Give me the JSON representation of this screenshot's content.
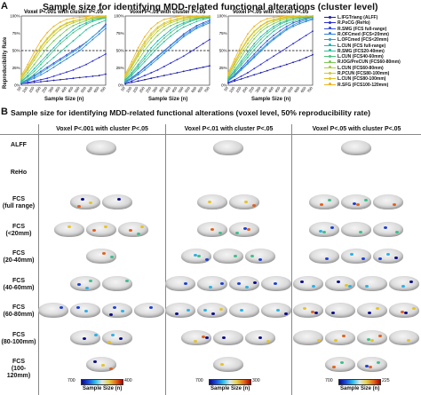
{
  "panelA": {
    "letter": "A",
    "title": "Sample size for identifying MDD-related functional alterations (cluster level)",
    "ylabel": "Reproducibility Rate",
    "xlabel": "Sample Size (n)",
    "subplots": [
      {
        "title": "Voxel P<.001 with cluster P<.05"
      },
      {
        "title": "Voxel P<.01 with cluster P<.05"
      },
      {
        "title": "Voxel P<.05 with cluster P<.05"
      }
    ],
    "yticks": [
      "100%",
      "75%",
      "50%",
      "25%",
      "0%"
    ],
    "xticks": [
      "50",
      "100",
      "150",
      "200",
      "250",
      "300",
      "350",
      "400",
      "450",
      "500",
      "550",
      "600",
      "650",
      "700"
    ],
    "legend": [
      {
        "label": "L.IFGTriang (ALFF)",
        "color": "#1a1aa6"
      },
      {
        "label": "R.PoCG (ReHo)",
        "color": "#2a2ad4"
      },
      {
        "label": "R.SMG (FCS full-range)",
        "color": "#3a4fd8"
      },
      {
        "label": "R.OFCmed (FCS<20mm)",
        "color": "#2f7fd8"
      },
      {
        "label": "L.OFCmed (FCS<20mm)",
        "color": "#2a9fd0"
      },
      {
        "label": "L.CUN (FCS full-range)",
        "color": "#22b6b6"
      },
      {
        "label": "R.SMG (FCS20-40mm)",
        "color": "#2bbf9a"
      },
      {
        "label": "L.CUN (FCS40-60mm)",
        "color": "#49c27a"
      },
      {
        "label": "R.IOG/PreCUN (FCS60-80mm)",
        "color": "#7cc956"
      },
      {
        "label": "L.CUN (FCS60-80mm)",
        "color": "#a9cf3c"
      },
      {
        "label": "R.PCUN (FCS80-100mm)",
        "color": "#cfc92e"
      },
      {
        "label": "L.CUN (FCS80-100mm)",
        "color": "#e2c226"
      },
      {
        "label": "R.SFG (FCS100-120mm)",
        "color": "#f0b41c"
      }
    ]
  },
  "panelB": {
    "letter": "B",
    "title": "Sample size for identifying MDD-related functional alterations (voxel level, 50% reproducibility rate)",
    "columns": [
      {
        "header": "Voxel P<.001 with cluster P<.05",
        "cbar_min": "700",
        "cbar_max": "400",
        "cbar_title": "Sample Size (n)"
      },
      {
        "header": "Voxel P<.01 with cluster P<.05",
        "cbar_min": "700",
        "cbar_max": "300",
        "cbar_title": "Sample Size (n)"
      },
      {
        "header": "Voxel P<.05 with cluster P<.05",
        "cbar_min": "700",
        "cbar_max": "225",
        "cbar_title": "Sample Size (n)"
      }
    ],
    "rows": [
      {
        "label": "ALFF"
      },
      {
        "label": "ReHo"
      },
      {
        "label": "FCS\n(full range)"
      },
      {
        "label": "FCS\n(<20mm)"
      },
      {
        "label": "FCS\n(20-40mm)"
      },
      {
        "label": "FCS\n(40-60mm)"
      },
      {
        "label": "FCS\n(60-80mm)"
      },
      {
        "label": "FCS\n(80-100mm)"
      },
      {
        "label": "FCS\n(100-120mm)"
      }
    ]
  },
  "chart_data": [
    {
      "type": "line",
      "title": "Voxel P<.001 with cluster P<.05",
      "xlabel": "Sample Size (n)",
      "ylabel": "Reproducibility Rate",
      "x": [
        50,
        100,
        150,
        200,
        250,
        300,
        350,
        400,
        450,
        500,
        550,
        600,
        650,
        700
      ],
      "ylim": [
        0,
        100
      ],
      "reference_line": 50,
      "series": [
        {
          "name": "L.IFGTriang (ALFF)",
          "values": [
            2,
            3,
            4,
            5,
            6,
            7,
            8,
            9,
            10,
            11,
            12,
            13,
            14,
            16
          ]
        },
        {
          "name": "R.PoCG (ReHo)",
          "values": [
            2,
            4,
            6,
            8,
            10,
            13,
            16,
            19,
            22,
            26,
            30,
            35,
            40,
            45
          ]
        },
        {
          "name": "R.SMG (FCS full-range)",
          "values": [
            4,
            8,
            14,
            20,
            26,
            32,
            38,
            44,
            50,
            56,
            62,
            70,
            78,
            88
          ]
        },
        {
          "name": "R.OFCmed (FCS<20mm)",
          "values": [
            3,
            6,
            10,
            15,
            20,
            26,
            32,
            38,
            44,
            50,
            58,
            66,
            74,
            82
          ]
        },
        {
          "name": "L.OFCmed (FCS<20mm)",
          "values": [
            3,
            7,
            12,
            18,
            24,
            30,
            36,
            42,
            48,
            54,
            62,
            70,
            78,
            86
          ]
        },
        {
          "name": "L.CUN (FCS full-range)",
          "values": [
            6,
            14,
            24,
            34,
            44,
            54,
            64,
            72,
            80,
            86,
            90,
            94,
            96,
            98
          ]
        },
        {
          "name": "R.SMG (FCS20-40mm)",
          "values": [
            4,
            9,
            16,
            24,
            32,
            40,
            48,
            56,
            64,
            72,
            80,
            86,
            90,
            94
          ]
        },
        {
          "name": "L.CUN (FCS40-60mm)",
          "values": [
            5,
            12,
            20,
            30,
            40,
            50,
            60,
            68,
            76,
            82,
            88,
            92,
            95,
            97
          ]
        },
        {
          "name": "R.IOG/PreCUN (FCS60-80mm)",
          "values": [
            8,
            18,
            30,
            42,
            54,
            64,
            72,
            80,
            86,
            90,
            93,
            96,
            97,
            98
          ]
        },
        {
          "name": "L.CUN (FCS60-80mm)",
          "values": [
            10,
            22,
            36,
            50,
            62,
            72,
            80,
            86,
            90,
            93,
            95,
            97,
            98,
            99
          ]
        },
        {
          "name": "R.PCUN (FCS80-100mm)",
          "values": [
            12,
            26,
            42,
            56,
            68,
            78,
            85,
            90,
            93,
            95,
            97,
            98,
            99,
            100
          ]
        },
        {
          "name": "L.CUN (FCS80-100mm)",
          "values": [
            10,
            24,
            40,
            54,
            66,
            76,
            84,
            89,
            92,
            95,
            97,
            98,
            99,
            100
          ]
        },
        {
          "name": "R.SFG (FCS100-120mm)",
          "values": [
            14,
            30,
            48,
            64,
            76,
            85,
            91,
            95,
            97,
            98,
            99,
            100,
            100,
            100
          ]
        }
      ]
    },
    {
      "type": "line",
      "title": "Voxel P<.01 with cluster P<.05",
      "xlabel": "Sample Size (n)",
      "ylabel": "Reproducibility Rate",
      "x": [
        50,
        100,
        150,
        200,
        250,
        300,
        350,
        400,
        450,
        500,
        550,
        600,
        650,
        700
      ],
      "ylim": [
        0,
        100
      ],
      "reference_line": 50,
      "series": [
        {
          "name": "L.IFGTriang (ALFF)",
          "values": [
            2,
            4,
            6,
            8,
            10,
            12,
            14,
            16,
            18,
            20,
            22,
            24,
            26,
            28
          ]
        },
        {
          "name": "R.PoCG (ReHo)",
          "values": [
            3,
            6,
            10,
            14,
            18,
            22,
            27,
            32,
            37,
            42,
            48,
            54,
            60,
            66
          ]
        },
        {
          "name": "R.SMG (FCS full-range)",
          "values": [
            5,
            11,
            18,
            26,
            34,
            42,
            50,
            58,
            66,
            74,
            80,
            86,
            90,
            94
          ]
        },
        {
          "name": "R.OFCmed (FCS<20mm)",
          "values": [
            4,
            9,
            15,
            22,
            30,
            38,
            46,
            54,
            62,
            70,
            76,
            82,
            86,
            90
          ]
        },
        {
          "name": "L.OFCmed (FCS<20mm)",
          "values": [
            4,
            10,
            17,
            25,
            33,
            41,
            49,
            57,
            65,
            72,
            78,
            84,
            88,
            92
          ]
        },
        {
          "name": "L.CUN (FCS full-range)",
          "values": [
            8,
            18,
            30,
            42,
            54,
            64,
            72,
            80,
            86,
            90,
            93,
            96,
            97,
            98
          ]
        },
        {
          "name": "R.SMG (FCS20-40mm)",
          "values": [
            6,
            14,
            24,
            34,
            44,
            54,
            63,
            71,
            78,
            84,
            88,
            92,
            95,
            97
          ]
        },
        {
          "name": "L.CUN (FCS40-60mm)",
          "values": [
            7,
            16,
            27,
            38,
            49,
            59,
            68,
            76,
            83,
            88,
            92,
            95,
            97,
            98
          ]
        },
        {
          "name": "R.IOG/PreCUN (FCS60-80mm)",
          "values": [
            10,
            22,
            36,
            50,
            62,
            72,
            80,
            86,
            90,
            93,
            95,
            97,
            98,
            99
          ]
        },
        {
          "name": "L.CUN (FCS60-80mm)",
          "values": [
            12,
            26,
            42,
            56,
            68,
            78,
            85,
            90,
            93,
            95,
            97,
            98,
            99,
            100
          ]
        },
        {
          "name": "R.PCUN (FCS80-100mm)",
          "values": [
            14,
            30,
            48,
            63,
            75,
            84,
            90,
            94,
            96,
            98,
            99,
            100,
            100,
            100
          ]
        },
        {
          "name": "L.CUN (FCS80-100mm)",
          "values": [
            12,
            28,
            45,
            60,
            72,
            82,
            88,
            92,
            95,
            97,
            98,
            99,
            100,
            100
          ]
        },
        {
          "name": "R.SFG (FCS100-120mm)",
          "values": [
            16,
            34,
            54,
            70,
            82,
            90,
            95,
            97,
            99,
            100,
            100,
            100,
            100,
            100
          ]
        }
      ]
    },
    {
      "type": "line",
      "title": "Voxel P<.05 with cluster P<.05",
      "xlabel": "Sample Size (n)",
      "ylabel": "Reproducibility Rate",
      "x": [
        50,
        100,
        150,
        200,
        250,
        300,
        350,
        400,
        450,
        500,
        550,
        600,
        650,
        700
      ],
      "ylim": [
        0,
        100
      ],
      "reference_line": 50,
      "series": [
        {
          "name": "L.IFGTriang (ALFF)",
          "values": [
            3,
            6,
            9,
            12,
            15,
            18,
            21,
            24,
            27,
            30,
            33,
            36,
            40,
            44
          ]
        },
        {
          "name": "R.PoCG (ReHo)",
          "values": [
            4,
            8,
            13,
            18,
            24,
            30,
            36,
            42,
            48,
            54,
            60,
            66,
            72,
            78
          ]
        },
        {
          "name": "R.SMG (FCS full-range)",
          "values": [
            7,
            15,
            25,
            35,
            45,
            55,
            64,
            72,
            79,
            85,
            90,
            93,
            96,
            98
          ]
        },
        {
          "name": "R.OFCmed (FCS<20mm)",
          "values": [
            6,
            13,
            22,
            31,
            40,
            49,
            58,
            66,
            73,
            80,
            85,
            89,
            92,
            95
          ]
        },
        {
          "name": "L.OFCmed (FCS<20mm)",
          "values": [
            6,
            14,
            23,
            32,
            42,
            51,
            60,
            68,
            75,
            82,
            87,
            91,
            94,
            96
          ]
        },
        {
          "name": "L.CUN (FCS full-range)",
          "values": [
            10,
            22,
            35,
            48,
            60,
            70,
            78,
            85,
            90,
            93,
            95,
            97,
            98,
            99
          ]
        },
        {
          "name": "R.SMG (FCS20-40mm)",
          "values": [
            8,
            18,
            29,
            40,
            51,
            61,
            70,
            78,
            84,
            89,
            92,
            95,
            97,
            98
          ]
        },
        {
          "name": "L.CUN (FCS40-60mm)",
          "values": [
            9,
            20,
            32,
            44,
            56,
            66,
            75,
            82,
            88,
            92,
            95,
            97,
            98,
            99
          ]
        },
        {
          "name": "R.IOG/PreCUN (FCS60-80mm)",
          "values": [
            12,
            26,
            41,
            55,
            67,
            77,
            84,
            89,
            93,
            95,
            97,
            98,
            99,
            100
          ]
        },
        {
          "name": "L.CUN (FCS60-80mm)",
          "values": [
            14,
            30,
            46,
            60,
            72,
            81,
            88,
            92,
            95,
            97,
            98,
            99,
            100,
            100
          ]
        },
        {
          "name": "R.PCUN (FCS80-100mm)",
          "values": [
            16,
            34,
            52,
            67,
            78,
            86,
            92,
            95,
            97,
            99,
            100,
            100,
            100,
            100
          ]
        },
        {
          "name": "L.CUN (FCS80-100mm)",
          "values": [
            14,
            32,
            50,
            65,
            77,
            85,
            91,
            94,
            96,
            98,
            99,
            100,
            100,
            100
          ]
        },
        {
          "name": "R.SFG (FCS100-120mm)",
          "values": [
            18,
            38,
            58,
            74,
            85,
            92,
            96,
            98,
            99,
            100,
            100,
            100,
            100,
            100
          ]
        }
      ]
    }
  ]
}
